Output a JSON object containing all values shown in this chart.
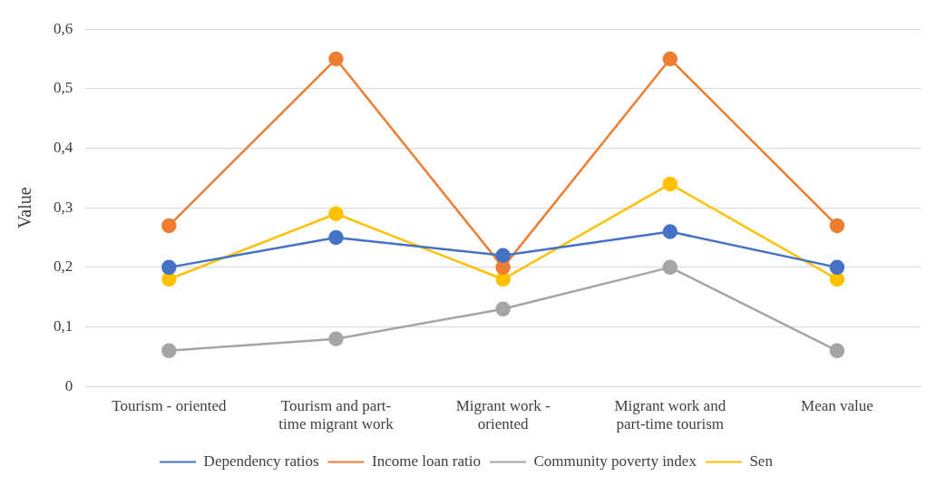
{
  "chart_data": {
    "type": "line",
    "ylabel": "Value",
    "categories": [
      "Tourism - oriented",
      "Tourism and part-time migrant work",
      "Migrant work - oriented",
      "Migrant work and part-time tourism",
      "Mean value"
    ],
    "series": [
      {
        "name": "Dependency ratios",
        "color": "#4472c4",
        "values": [
          0.2,
          0.25,
          0.22,
          0.26,
          0.2
        ]
      },
      {
        "name": "Income loan ratio",
        "color": "#ed7d31",
        "values": [
          0.27,
          0.55,
          0.2,
          0.55,
          0.27
        ]
      },
      {
        "name": "Community poverty index",
        "color": "#a5a5a5",
        "values": [
          0.06,
          0.08,
          0.13,
          0.2,
          0.06
        ]
      },
      {
        "name": "Sen",
        "color": "#ffc000",
        "values": [
          0.18,
          0.29,
          0.18,
          0.34,
          0.18
        ]
      }
    ],
    "ylim": [
      0,
      0.6
    ],
    "yticks": [
      0,
      {
        "value": 0.1,
        "label": "0,1"
      },
      {
        "value": 0.2,
        "label": "0,2"
      },
      {
        "value": 0.3,
        "label": "0,3"
      },
      {
        "value": 0.4,
        "label": "0,4"
      },
      {
        "value": 0.5,
        "label": "0,5"
      },
      {
        "value": 0.6,
        "label": "0,6"
      }
    ],
    "grid": "y",
    "legend": "bottom",
    "marker": "circle",
    "line_style": "solid"
  }
}
